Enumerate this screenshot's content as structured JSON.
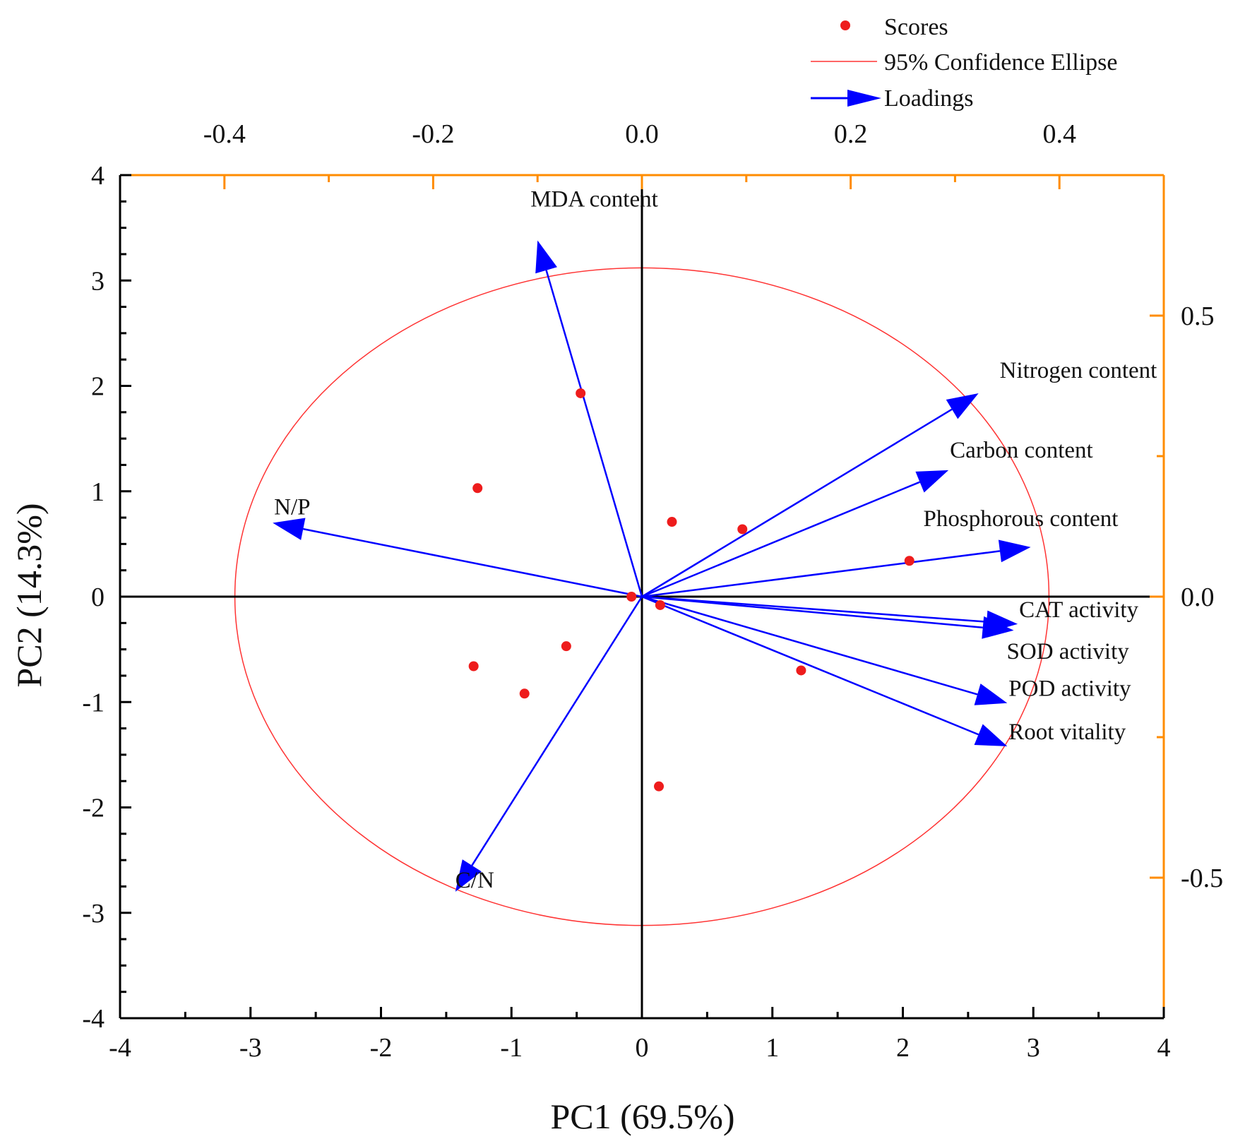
{
  "chart_data": {
    "type": "scatter",
    "subtype": "pca-biplot",
    "xlabel": "PC1 (69.5%)",
    "ylabel": "PC2 (14.3%)",
    "xlim": [
      -4,
      4
    ],
    "ylim": [
      -4,
      4
    ],
    "x_ticks": [
      "-4",
      "-3",
      "-2",
      "-1",
      "0",
      "1",
      "2",
      "3",
      "4"
    ],
    "y_ticks": [
      "-4",
      "-3",
      "-2",
      "-1",
      "0",
      "1",
      "2",
      "3",
      "4"
    ],
    "top_axis": {
      "range": [
        -0.5,
        0.5
      ],
      "ticks": [
        {
          "value": -0.4,
          "label": "-0.4"
        },
        {
          "value": -0.2,
          "label": "-0.2"
        },
        {
          "value": 0.0,
          "label": "0.0"
        },
        {
          "value": 0.2,
          "label": "0.2"
        },
        {
          "value": 0.4,
          "label": "0.4"
        }
      ]
    },
    "right_axis": {
      "range": [
        -0.75,
        0.75
      ],
      "ticks": [
        {
          "value": 0.5,
          "label": "0.5"
        },
        {
          "value": 0.0,
          "label": "0.0"
        },
        {
          "value": -0.5,
          "label": "-0.5"
        }
      ],
      "minor_ticks": [
        0.25,
        -0.25
      ]
    },
    "axis_color": "#ff8c00",
    "scores": {
      "name": "Scores",
      "color": "#ee1c1c",
      "points": [
        {
          "x": -0.47,
          "y": 1.93
        },
        {
          "x": -1.26,
          "y": 1.03
        },
        {
          "x": 0.23,
          "y": 0.71
        },
        {
          "x": 0.77,
          "y": 0.64
        },
        {
          "x": 2.05,
          "y": 0.34
        },
        {
          "x": -0.08,
          "y": 0.0
        },
        {
          "x": 0.14,
          "y": -0.08
        },
        {
          "x": -0.58,
          "y": -0.47
        },
        {
          "x": -1.29,
          "y": -0.66
        },
        {
          "x": -0.9,
          "y": -0.92
        },
        {
          "x": 1.22,
          "y": -0.7
        },
        {
          "x": 0.13,
          "y": -1.8
        }
      ]
    },
    "ellipse": {
      "name": "95% Confidence Ellipse",
      "color": "#ff3333",
      "center": [
        0.0,
        0.0
      ],
      "semi_axis_x": 3.12,
      "semi_axis_y": 3.12
    },
    "loadings": {
      "name": "Loadings",
      "color": "#0000ff",
      "vectors": [
        {
          "label": "MDA content",
          "x": -0.8,
          "y": 3.38
        },
        {
          "label": "Nitrogen content",
          "x": 2.58,
          "y": 1.93
        },
        {
          "label": "Carbon content",
          "x": 2.35,
          "y": 1.2
        },
        {
          "label": "Phosphorous content",
          "x": 2.98,
          "y": 0.47
        },
        {
          "label": "N/P",
          "x": -2.83,
          "y": 0.7
        },
        {
          "label": "CAT activity",
          "x": 2.88,
          "y": -0.26
        },
        {
          "label": "SOD activity",
          "x": 2.85,
          "y": -0.32
        },
        {
          "label": "POD activity",
          "x": 2.8,
          "y": -1.01
        },
        {
          "label": "Root vitality",
          "x": 2.8,
          "y": -1.42
        },
        {
          "label": "C/N",
          "x": -1.43,
          "y": -2.8
        }
      ]
    },
    "legend": {
      "position": "top-right",
      "entries": [
        "Scores",
        "95% Confidence Ellipse",
        "Loadings"
      ]
    }
  }
}
